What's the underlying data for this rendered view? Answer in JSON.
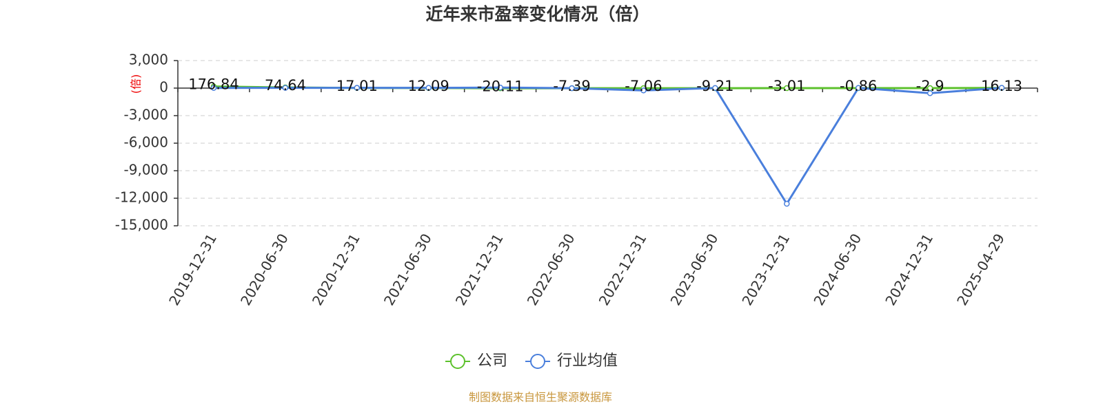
{
  "chart_data": {
    "type": "line",
    "title": "近年来市盈率变化情况（倍）",
    "y_label": "(倍)",
    "source": "制图数据来自恒生聚源数据库",
    "categories": [
      "2019-12-31",
      "2020-06-30",
      "2020-12-31",
      "2021-06-30",
      "2021-12-31",
      "2022-06-30",
      "2022-12-31",
      "2023-06-30",
      "2023-12-31",
      "2024-06-30",
      "2024-12-31",
      "2025-04-29"
    ],
    "series": [
      {
        "name": "公司",
        "color": "#5cc12c",
        "values": [
          176.84,
          74.64,
          17.01,
          12.09,
          -20.11,
          -7.39,
          -7.06,
          -9.21,
          -3.01,
          -0.86,
          -2.9,
          16.13
        ],
        "show_labels": true
      },
      {
        "name": "行业均值",
        "color": "#4a7fdc",
        "values": [
          20,
          30,
          25,
          25,
          60,
          -10,
          -250,
          10,
          -12600,
          20,
          -550,
          30
        ],
        "show_labels": false
      }
    ],
    "ylim": [
      -15000,
      3000
    ],
    "yticks": [
      {
        "value": 3000,
        "label": "3,000"
      },
      0,
      {
        "value": -3000,
        "label": "-3,000"
      },
      {
        "value": -6000,
        "label": "-6,000"
      },
      {
        "value": -9000,
        "label": "-9,000"
      },
      {
        "value": -12000,
        "label": "-12,000"
      },
      {
        "value": -15000,
        "label": "-15,000"
      }
    ],
    "grid": true
  }
}
